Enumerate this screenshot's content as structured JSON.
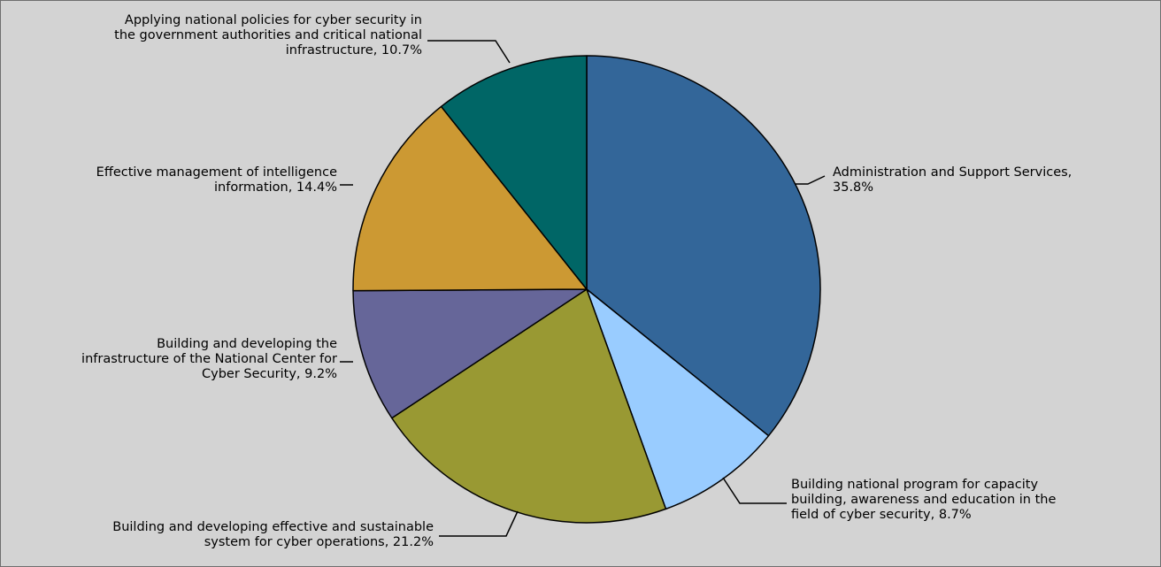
{
  "chart_data": {
    "type": "pie",
    "start_angle_deg": 0,
    "direction": "clockwise",
    "slices": [
      {
        "label_lines": [
          "Administration and Support Services,",
          "35.8%"
        ],
        "value": 35.8,
        "color": "#336699"
      },
      {
        "label_lines": [
          "Building national program for capacity",
          "building, awareness and education in the",
          "field of cyber security, 8.7%"
        ],
        "value": 8.7,
        "color": "#99ccff"
      },
      {
        "label_lines": [
          "Building and developing effective and sustainable",
          "system for cyber operations, 21.2%"
        ],
        "value": 21.2,
        "color": "#999933"
      },
      {
        "label_lines": [
          "Building and developing the",
          "infrastructure of the National Center for",
          "Cyber Security, 9.2%"
        ],
        "value": 9.2,
        "color": "#666699"
      },
      {
        "label_lines": [
          "Effective management of intelligence",
          "information, 14.4%"
        ],
        "value": 14.4,
        "color": "#cc9933"
      },
      {
        "label_lines": [
          "Applying national policies for cyber security in",
          "the government authorities and critical national",
          "infrastructure, 10.7%"
        ],
        "value": 10.7,
        "color": "#006666"
      }
    ]
  }
}
